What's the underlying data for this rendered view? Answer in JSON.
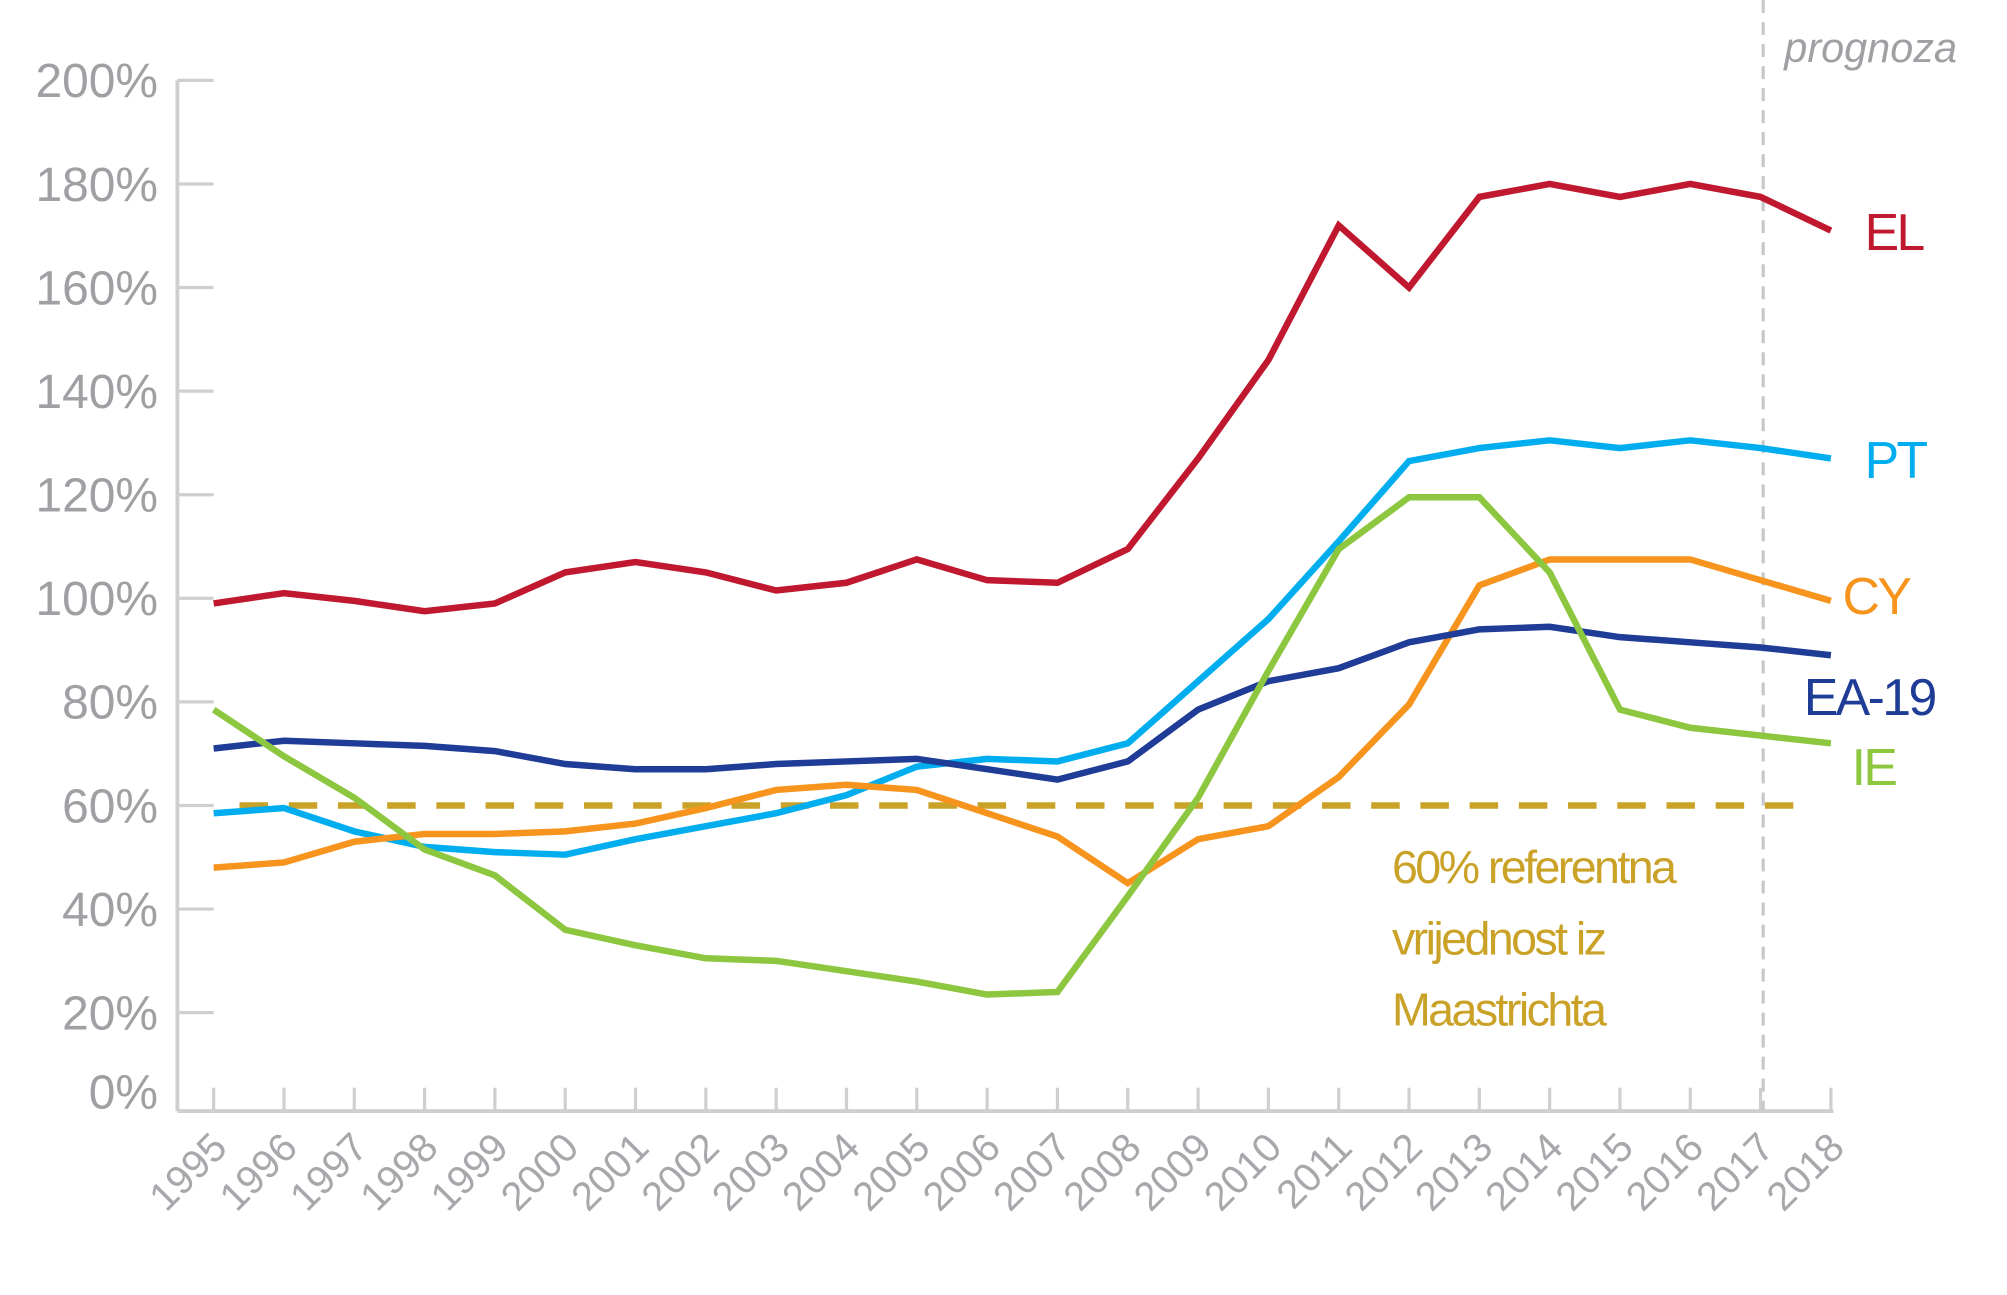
{
  "chart_data": {
    "type": "line",
    "title": "",
    "xlabel": "",
    "ylabel": "",
    "x": [
      1995,
      1996,
      1997,
      1998,
      1999,
      2000,
      2001,
      2002,
      2003,
      2004,
      2005,
      2006,
      2007,
      2008,
      2009,
      2010,
      2011,
      2012,
      2013,
      2014,
      2015,
      2016,
      2017,
      2018
    ],
    "ylim": [
      0,
      200
    ],
    "yticks": [
      "0%",
      "20%",
      "40%",
      "60%",
      "80%",
      "100%",
      "120%",
      "140%",
      "160%",
      "180%",
      "200%"
    ],
    "ytick_values": [
      0,
      20,
      40,
      60,
      80,
      100,
      120,
      140,
      160,
      180,
      200
    ],
    "series": [
      {
        "name": "EL",
        "color": "#c0192f",
        "values": [
          99,
          101,
          99.5,
          97.5,
          99,
          105,
          107,
          105,
          101.5,
          103,
          107.5,
          103.5,
          103,
          109.5,
          127,
          146,
          172,
          160,
          177.5,
          180,
          177.5,
          180,
          177.5,
          171
        ]
      },
      {
        "name": "PT",
        "color": "#00aeef",
        "values": [
          58.5,
          59.5,
          55,
          52,
          51,
          50.5,
          53.5,
          56,
          58.5,
          62,
          67.5,
          69,
          68.5,
          72,
          84,
          96,
          111,
          126.5,
          129,
          130.5,
          129,
          130.5,
          129,
          127
        ]
      },
      {
        "name": "CY",
        "color": "#f7941d",
        "values": [
          48,
          49,
          53,
          54.5,
          54.5,
          55,
          56.5,
          59.5,
          63,
          64,
          63,
          58.5,
          54,
          45,
          53.5,
          56,
          65.5,
          79.5,
          102.5,
          107.5,
          107.5,
          107.5,
          103.5,
          99.5
        ]
      },
      {
        "name": "EA-19",
        "color": "#1f3c96",
        "values": [
          71,
          72.5,
          72,
          71.5,
          70.5,
          68,
          67,
          67,
          68,
          68.5,
          69,
          67,
          65,
          68.5,
          78.5,
          84,
          86.5,
          91.5,
          94,
          94.5,
          92.5,
          91.5,
          90.5,
          89
        ]
      },
      {
        "name": "IE",
        "color": "#8dc63f",
        "values": [
          78.5,
          69.5,
          61.5,
          51.5,
          46.5,
          36,
          33,
          30.5,
          30,
          28,
          26,
          23.5,
          24,
          42.5,
          61.5,
          86,
          109.5,
          119.5,
          119.5,
          105,
          78.5,
          75,
          73.5,
          72
        ]
      }
    ],
    "reference_line": {
      "value": 60,
      "color": "#c9a227",
      "label_lines": [
        "60% referentna",
        "vrijednost iz",
        "Maastrichta"
      ]
    },
    "forecast": {
      "from_year": 2017,
      "label": "prognoza"
    },
    "grid": false,
    "legend": "inline-right"
  }
}
